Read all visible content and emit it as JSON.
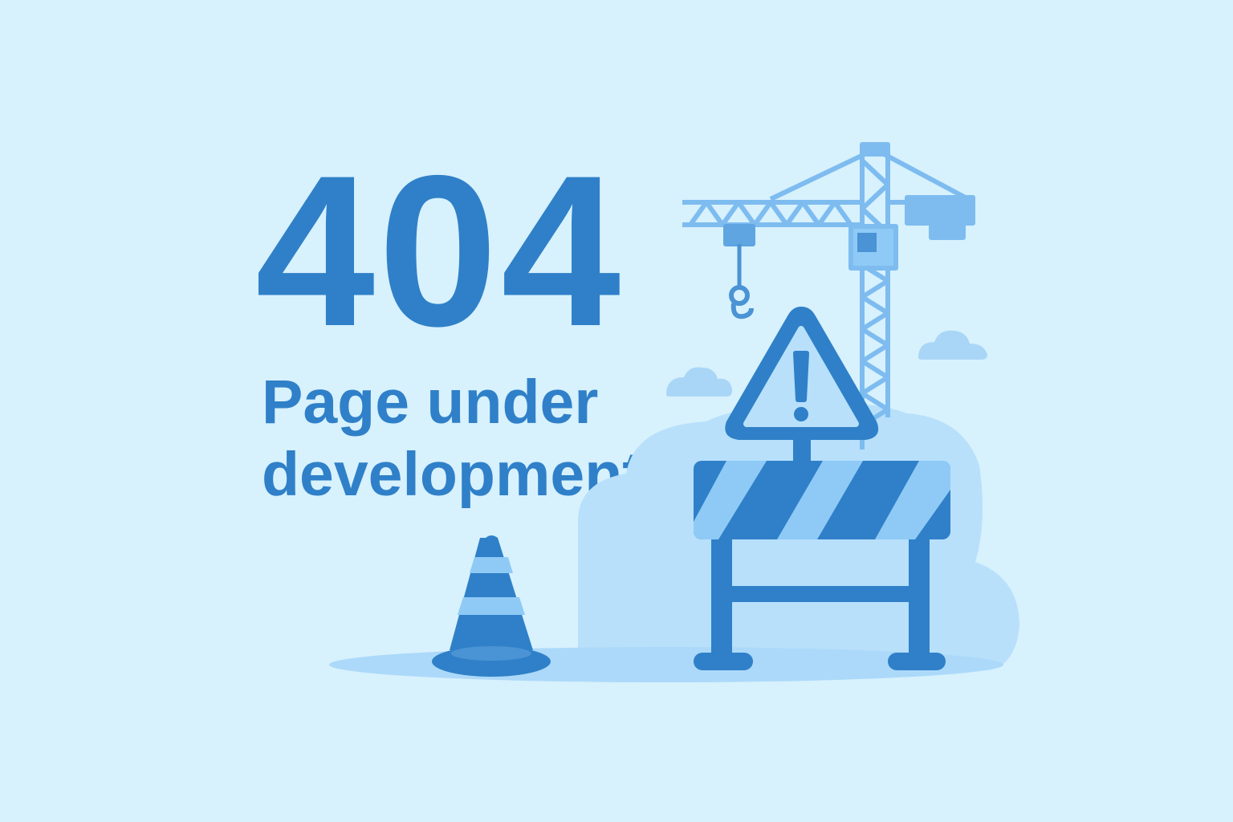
{
  "error": {
    "code": "404",
    "message_line1": "Page under",
    "message_line2": "development"
  },
  "illustration": {
    "items": [
      "crane-icon",
      "warning-sign-icon",
      "barrier-icon",
      "traffic-cone-icon",
      "cloud-icon"
    ]
  },
  "colors": {
    "background": "#d7f1fd",
    "primary": "#2f80c8",
    "light": "#8fcaf6",
    "lighter": "#b8e0fb"
  }
}
